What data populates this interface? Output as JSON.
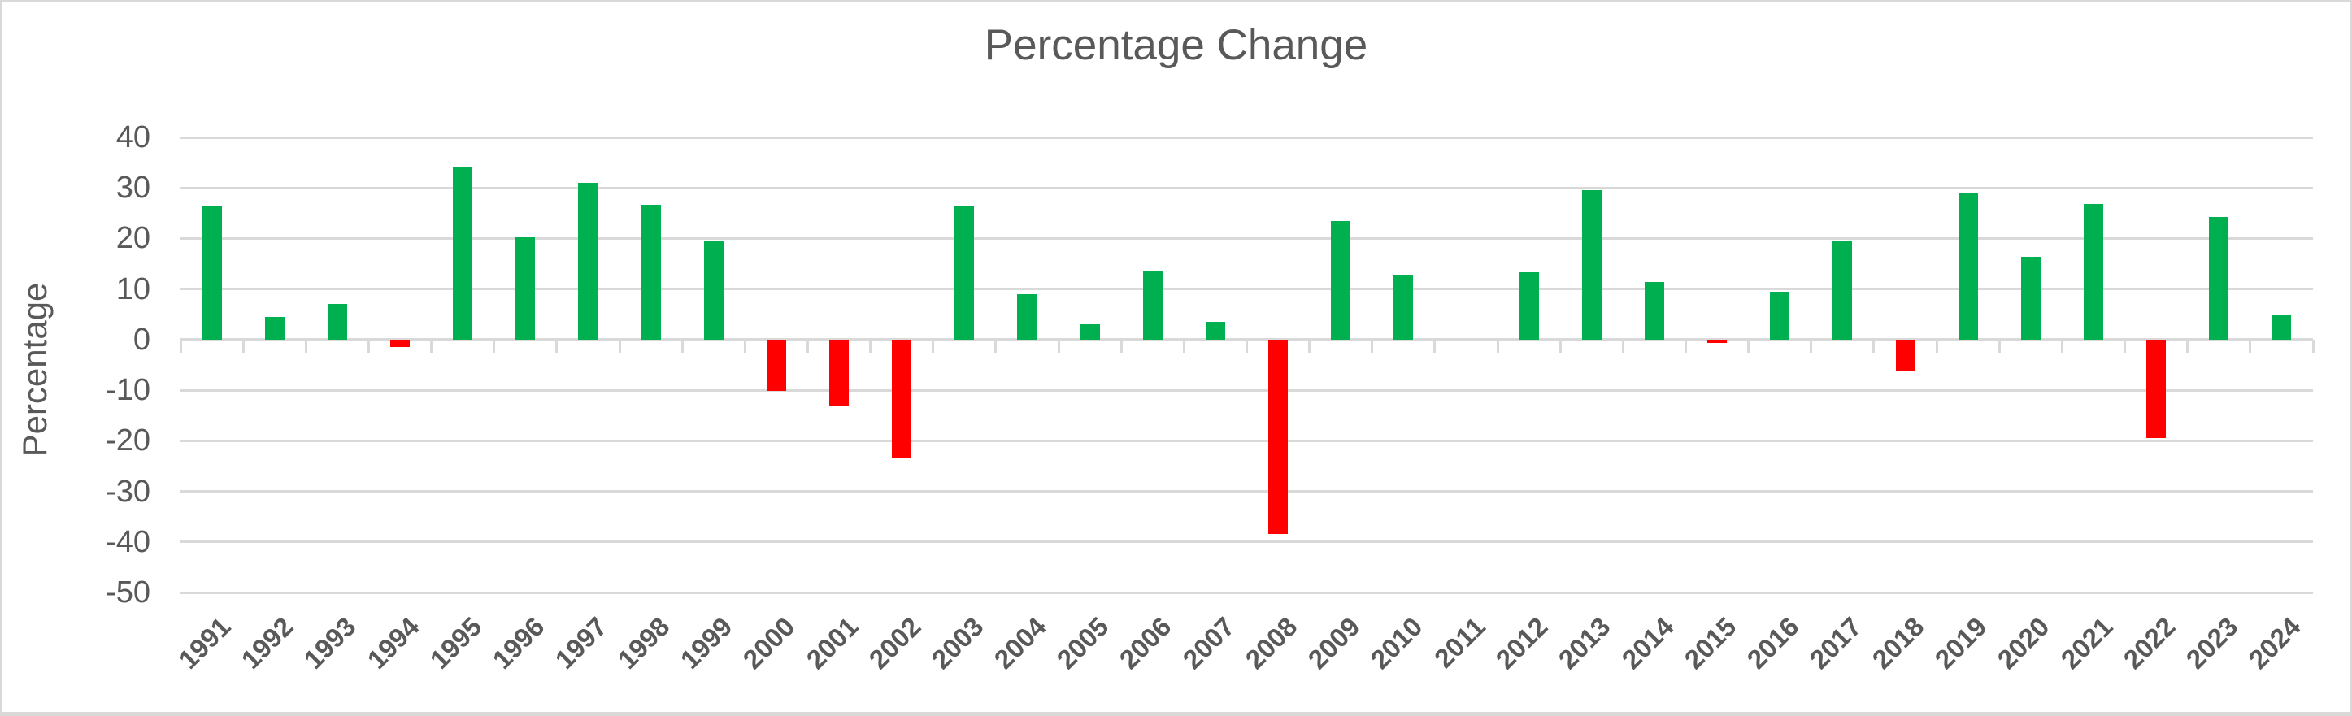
{
  "chart": {
    "title": "Percentage Change",
    "y_axis_title": "Percentage",
    "text_color": "#595959",
    "grid_color": "#D9D9D9",
    "positive_color": "#00B050",
    "negative_color": "#FF0000"
  },
  "chart_data": {
    "type": "bar",
    "title": "Percentage Change",
    "xlabel": "",
    "ylabel": "Percentage",
    "ylim": [
      -50,
      40
    ],
    "y_ticks": [
      40,
      30,
      20,
      10,
      0,
      -10,
      -20,
      -30,
      -40,
      -50
    ],
    "grid": true,
    "legend": false,
    "categories": [
      "1991",
      "1992",
      "1993",
      "1994",
      "1995",
      "1996",
      "1997",
      "1998",
      "1999",
      "2000",
      "2001",
      "2002",
      "2003",
      "2004",
      "2005",
      "2006",
      "2007",
      "2008",
      "2009",
      "2010",
      "2011",
      "2012",
      "2013",
      "2014",
      "2015",
      "2016",
      "2017",
      "2018",
      "2019",
      "2020",
      "2021",
      "2022",
      "2023",
      "2024"
    ],
    "values": [
      26.3,
      4.5,
      7.1,
      -1.5,
      34.1,
      20.3,
      31.0,
      26.7,
      19.5,
      -10.1,
      -13.0,
      -23.4,
      26.4,
      9.0,
      3.0,
      13.6,
      3.5,
      -38.5,
      23.5,
      12.8,
      0.0,
      13.4,
      29.6,
      11.4,
      -0.7,
      9.5,
      19.4,
      -6.2,
      28.9,
      16.3,
      26.9,
      -19.4,
      24.2,
      5.0
    ],
    "positive_color": "#00B050",
    "negative_color": "#FF0000"
  }
}
